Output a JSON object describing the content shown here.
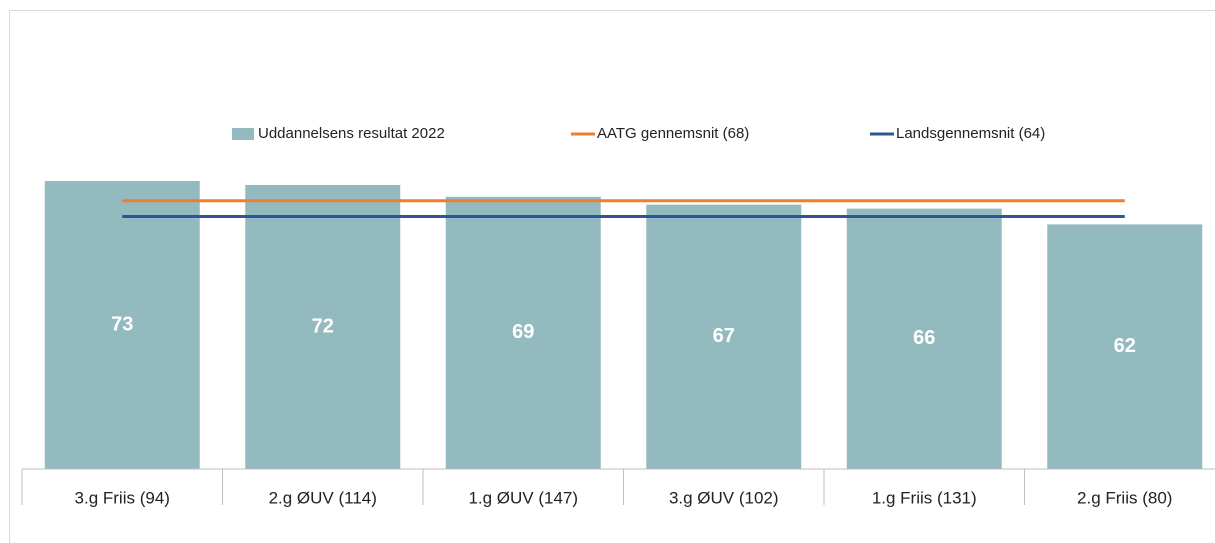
{
  "chart_data": {
    "type": "bar",
    "categories": [
      "3.g Friis (94)",
      "2.g ØUV (114)",
      "1.g ØUV (147)",
      "3.g ØUV (102)",
      "1.g Friis (131)",
      "2.g Friis (80)"
    ],
    "ylim": [
      0,
      100
    ],
    "series": [
      {
        "name": "Uddannelsens resultat 2022",
        "type": "bar",
        "color": "#93babf",
        "values": [
          73,
          72,
          69,
          67,
          66,
          62
        ]
      },
      {
        "name": "AATG gennemsnit (68)",
        "type": "line",
        "color": "#ed7d31",
        "values": [
          68,
          68,
          68,
          68,
          68,
          68
        ]
      },
      {
        "name": "Landsgennemsnit (64)",
        "type": "line",
        "color": "#2f5597",
        "values": [
          64,
          64,
          64,
          64,
          64,
          64
        ]
      }
    ],
    "legend": "top"
  }
}
